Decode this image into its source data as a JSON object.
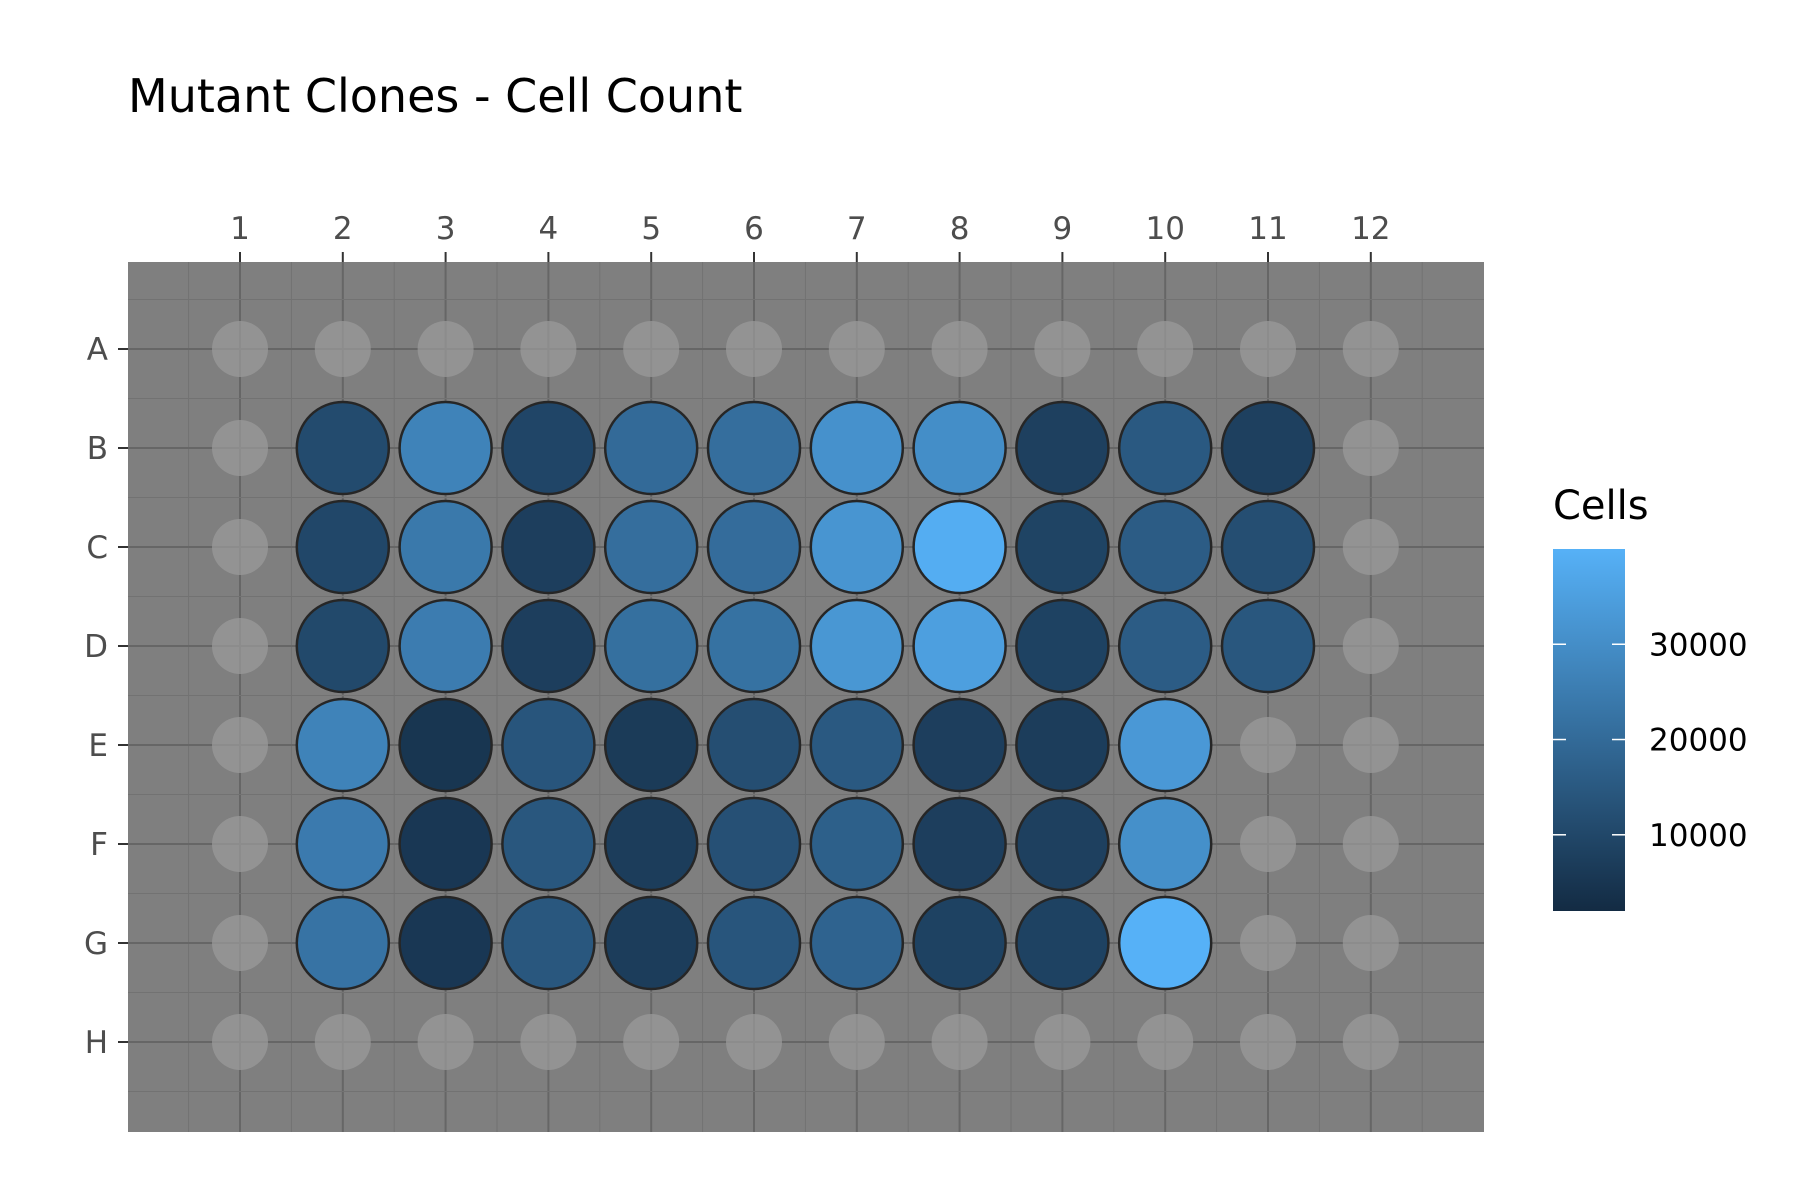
{
  "chart_data": {
    "type": "heatmap",
    "title": "Mutant Clones - Cell Count",
    "columns": [
      "1",
      "2",
      "3",
      "4",
      "5",
      "6",
      "7",
      "8",
      "9",
      "10",
      "11",
      "12"
    ],
    "rows": [
      "A",
      "B",
      "C",
      "D",
      "E",
      "F",
      "G",
      "H"
    ],
    "values": [
      [
        null,
        null,
        null,
        null,
        null,
        null,
        null,
        null,
        null,
        null,
        null,
        null
      ],
      [
        null,
        11000,
        27000,
        9500,
        20000,
        21000,
        31000,
        30000,
        8000,
        15000,
        8000,
        null
      ],
      [
        null,
        10000,
        24000,
        7500,
        21000,
        20500,
        32000,
        39000,
        9000,
        16000,
        12000,
        null
      ],
      [
        null,
        10500,
        25000,
        7500,
        21500,
        22000,
        32500,
        35000,
        8500,
        16000,
        14500,
        null
      ],
      [
        null,
        27000,
        5000,
        14000,
        6500,
        12000,
        15000,
        7500,
        7000,
        33000,
        null,
        null
      ],
      [
        null,
        24500,
        5500,
        14500,
        7000,
        12500,
        17000,
        7500,
        8000,
        30500,
        null,
        null
      ],
      [
        null,
        22500,
        5500,
        14500,
        7000,
        14000,
        18000,
        8500,
        8500,
        40000,
        null,
        null
      ],
      [
        null,
        null,
        null,
        null,
        null,
        null,
        null,
        null,
        null,
        null,
        null,
        null
      ]
    ],
    "color_scale": {
      "low": "#132B43",
      "high": "#56B1F7",
      "min": 2000,
      "max": 40000
    },
    "panel_background": "#7f7f7f",
    "empty_well_color": "#9a9a9a",
    "grid": true,
    "legend": {
      "title": "Cells",
      "ticks": [
        10000,
        20000,
        30000
      ],
      "tick_labels": [
        "10000",
        "20000",
        "30000"
      ],
      "position": "right"
    }
  }
}
